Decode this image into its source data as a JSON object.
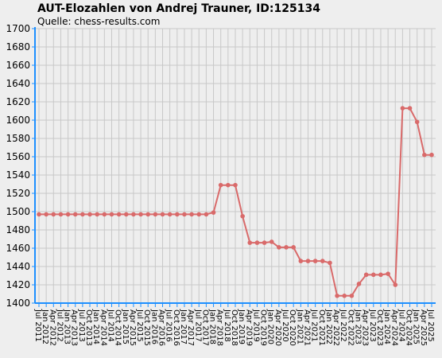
{
  "chart_data": {
    "type": "line",
    "title": "AUT-Elozahlen von Andrej Trauner, ID:125134",
    "subtitle": "Quelle: chess-results.com",
    "xlabel": "",
    "ylabel": "",
    "ylim": [
      1400,
      1700
    ],
    "yticks": [
      1400,
      1420,
      1440,
      1460,
      1480,
      1500,
      1520,
      1540,
      1560,
      1580,
      1600,
      1620,
      1640,
      1660,
      1680,
      1700
    ],
    "grid": true,
    "colors": {
      "line": "#d96a6a",
      "axis": "#1e90ff",
      "grid": "#c8c8c8",
      "background": "#eeeeee"
    },
    "categories": [
      "Jul 2011",
      "Jan 2012",
      "Apr 2012",
      "Jul 2012",
      "Jan 2013",
      "Apr 2013",
      "Jul 2013",
      "Oct 2013",
      "Jan 2014",
      "Apr 2014",
      "Jul 2014",
      "Oct 2014",
      "Jan 2015",
      "Apr 2015",
      "Jul 2015",
      "Oct 2015",
      "Jan 2016",
      "Apr 2016",
      "Jul 2016",
      "Oct 2016",
      "Jan 2017",
      "Apr 2017",
      "Jul 2017",
      "Oct 2017",
      "Jan 2018",
      "Apr 2018",
      "Jul 2018",
      "Oct 2018",
      "Jan 2019",
      "Apr 2019",
      "Jul 2019",
      "Oct 2019",
      "Jan 2020",
      "Apr 2020",
      "Jul 2020",
      "Oct 2020",
      "Jan 2021",
      "Apr 2021",
      "Jul 2021",
      "Oct 2021",
      "Jan 2022",
      "Apr 2022",
      "Jul 2022",
      "Oct 2022",
      "Jan 2023",
      "Apr 2023",
      "Jul 2023",
      "Oct 2023",
      "Jan 2024",
      "Apr 2024",
      "Jul 2024",
      "Oct 2024",
      "Jan 2025",
      "Apr 2025",
      "Jul 2025"
    ],
    "series": [
      {
        "values": [
          1497,
          1497,
          1497,
          1497,
          1497,
          1497,
          1497,
          1497,
          1497,
          1497,
          1497,
          1497,
          1497,
          1497,
          1497,
          1497,
          1497,
          1497,
          1497,
          1497,
          1497,
          1497,
          1497,
          1497,
          1499,
          1529,
          1529,
          1529,
          1495,
          1466,
          1466,
          1466,
          1467,
          1461,
          1461,
          1461,
          1446,
          1446,
          1446,
          1446,
          1444,
          1408,
          1408,
          1408,
          1421,
          1431,
          1431,
          1431,
          1432,
          1420,
          1613,
          1613,
          1598,
          1562,
          1562
        ]
      }
    ]
  }
}
